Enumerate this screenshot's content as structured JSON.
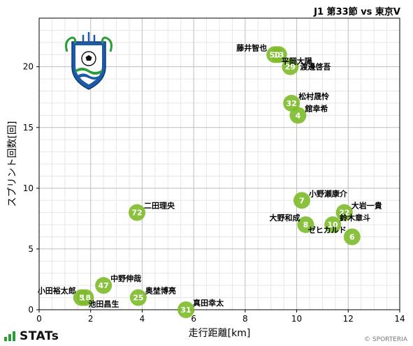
{
  "header": {
    "title": "J1 第33節 vs 東京V"
  },
  "footer": {
    "brand": "STATs",
    "copyright": "© SPORTERIA"
  },
  "colors": {
    "marker": "#7dbb2a",
    "grid_major": "#bdbdbd",
    "grid_minor": "#e6e6e6"
  },
  "chart_data": {
    "type": "scatter",
    "title": "",
    "xlabel": "走行距離[km]",
    "ylabel": "スプリント回数[回]",
    "xlim": [
      0,
      14
    ],
    "ylim": [
      0,
      24
    ],
    "xticks": [
      0,
      2,
      4,
      6,
      8,
      10,
      12,
      14
    ],
    "yticks": [
      0,
      5,
      10,
      15,
      20
    ],
    "grid": true,
    "team_logo": "shonan-bellmare-emblem",
    "points": [
      {
        "number": "50",
        "name": "藤井智也",
        "x": 9.15,
        "y": 21.0,
        "label_side": "left"
      },
      {
        "number": "13",
        "name": "平岡大陽",
        "x": 9.3,
        "y": 21.0,
        "label_side": "right-below"
      },
      {
        "number": "29",
        "name": "渡邊啓吾",
        "x": 9.75,
        "y": 20.0,
        "label_side": "right"
      },
      {
        "number": "32",
        "name": "松村晟怜",
        "x": 9.8,
        "y": 17.0,
        "label_side": "right-above"
      },
      {
        "number": "4",
        "name": "舘幸希",
        "x": 10.05,
        "y": 16.0,
        "label_side": "right-above"
      },
      {
        "number": "7",
        "name": "小野瀬康介",
        "x": 10.2,
        "y": 9.0,
        "label_side": "right-above"
      },
      {
        "number": "22",
        "name": "大岩一貴",
        "x": 11.85,
        "y": 8.0,
        "label_side": "right-above"
      },
      {
        "number": "8",
        "name": "大野和成",
        "x": 10.35,
        "y": 7.0,
        "label_side": "left-above"
      },
      {
        "number": "10",
        "name": "鈴木章斗",
        "x": 11.4,
        "y": 7.0,
        "label_side": "right-above"
      },
      {
        "number": "6",
        "name": "ゼヒカルド",
        "x": 12.15,
        "y": 6.0,
        "label_side": "left-above"
      },
      {
        "number": "72",
        "name": "二田理央",
        "x": 3.8,
        "y": 8.0,
        "label_side": "right-above"
      },
      {
        "number": "47",
        "name": "中野伸哉",
        "x": 2.5,
        "y": 2.0,
        "label_side": "right-above"
      },
      {
        "number": "5",
        "name": "小田裕太郎",
        "x": 1.65,
        "y": 1.0,
        "label_side": "left-above"
      },
      {
        "number": "18",
        "name": "池田昌生",
        "x": 1.8,
        "y": 1.0,
        "label_side": "right-below"
      },
      {
        "number": "25",
        "name": "奥埜博亮",
        "x": 3.85,
        "y": 1.0,
        "label_side": "right-above"
      },
      {
        "number": "31",
        "name": "真田幸太",
        "x": 5.7,
        "y": 0.0,
        "label_side": "right-above"
      }
    ]
  }
}
